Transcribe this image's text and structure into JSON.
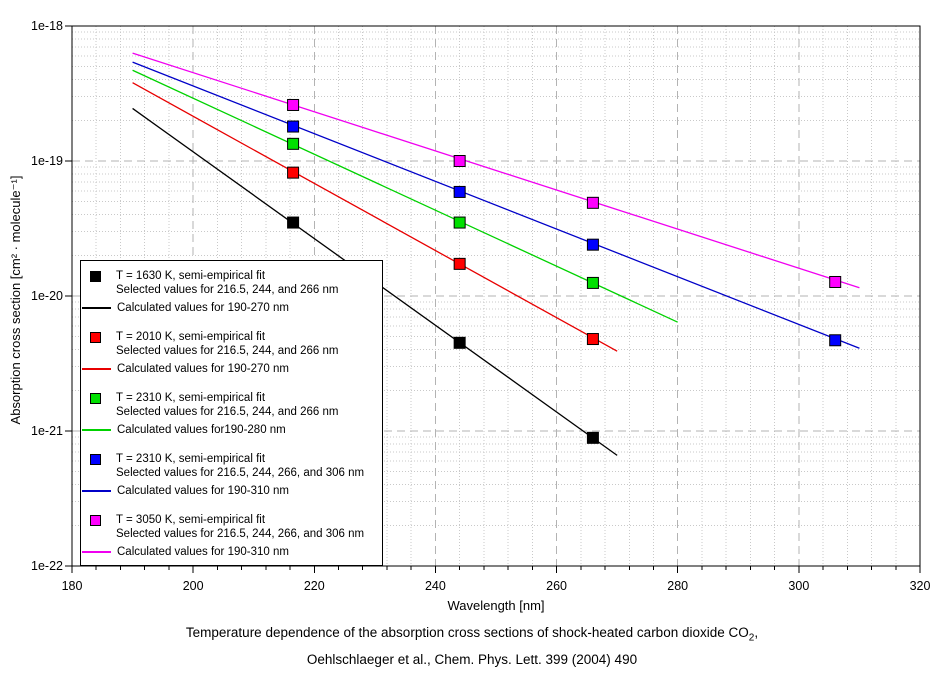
{
  "caption": {
    "line1_main": "Temperature dependence of the absorption cross sections of shock-heated carbon dioxide CO",
    "line1_sub": "2",
    "line1_tail": ",",
    "line2": "Oehlschlaeger et al., Chem. Phys. Lett. 399 (2004) 490"
  },
  "chart_data": {
    "type": "scatter",
    "title": "",
    "xlabel": "Wavelength [nm]",
    "ylabel": "Absorption cross section [cm² · molecule⁻¹]",
    "x_axis": {
      "min": 180,
      "max": 320,
      "major_ticks": [
        180,
        200,
        220,
        240,
        260,
        280,
        300,
        320
      ],
      "minor_step": 4
    },
    "y_axis": {
      "scale": "log",
      "min": 1e-22,
      "max": 1e-18,
      "major_tick_labels": [
        "1e-18",
        "1e-19",
        "1e-20",
        "1e-21",
        "1e-22"
      ],
      "major_tick_exponents": [
        -18,
        -19,
        -20,
        -21,
        -22
      ]
    },
    "grid": {
      "major_on": true,
      "minor_on": true,
      "major_color": "#b3b3b3",
      "minor_color": "#c9c9c9"
    },
    "legend_position": "lower-left",
    "series": [
      {
        "temperature_label": "T = 1630 K, semi-empirical fit",
        "points_label": "Selected values for 216.5, 244, and 266 nm",
        "line_label": "Calculated values for 190-270 nm",
        "marker_color": "#000000",
        "line_color": "#000000",
        "points": {
          "x": [
            216.5,
            244,
            266
          ],
          "y": [
            3.5e-20,
            4.5e-21,
            8.9e-22
          ]
        },
        "fit_line": {
          "x": [
            190,
            270
          ],
          "y": [
            2.45e-19,
            6.6e-22
          ]
        }
      },
      {
        "temperature_label": "T = 2010 K, semi-empirical fit",
        "points_label": "Selected values for 216.5, 244, and 266 nm",
        "line_label": "Calculated values for 190-270 nm",
        "marker_color": "#ff0000",
        "line_color": "#e80000",
        "points": {
          "x": [
            216.5,
            244,
            266
          ],
          "y": [
            8.2e-20,
            1.73e-20,
            4.8e-21
          ]
        },
        "fit_line": {
          "x": [
            190,
            270
          ],
          "y": [
            3.8e-19,
            3.9e-21
          ]
        }
      },
      {
        "temperature_label": "T = 2310 K, semi-empirical fit",
        "points_label": "Selected values for 216.5, 244, and 266 nm",
        "line_label": "Calculated values for190-280 nm",
        "marker_color": "#00e000",
        "line_color": "#00d200",
        "points": {
          "x": [
            216.5,
            244,
            266
          ],
          "y": [
            1.34e-19,
            3.5e-20,
            1.25e-20
          ]
        },
        "fit_line": {
          "x": [
            190,
            280
          ],
          "y": [
            4.7e-19,
            6.4e-21
          ]
        }
      },
      {
        "temperature_label": "T = 2310 K, semi-empirical fit",
        "points_label": "Selected values for 216.5, 244, 266, and 306 nm",
        "line_label": "Calculated values for 190-310 nm",
        "marker_color": "#0000ff",
        "line_color": "#0000c8",
        "points": {
          "x": [
            216.5,
            244,
            266,
            306
          ],
          "y": [
            1.8e-19,
            5.9e-20,
            2.4e-20,
            4.7e-21
          ]
        },
        "fit_line": {
          "x": [
            190,
            310
          ],
          "y": [
            5.4e-19,
            4.1e-21
          ]
        }
      },
      {
        "temperature_label": "T = 3050 K, semi-empirical fit",
        "points_label": "Selected values for 216.5, 244, 266, and 306 nm",
        "line_label": "Calculated values for 190-310 nm",
        "marker_color": "#ff00ff",
        "line_color": "#f000f0",
        "points": {
          "x": [
            216.5,
            244,
            266,
            306
          ],
          "y": [
            2.6e-19,
            1e-19,
            4.9e-20,
            1.27e-20
          ]
        },
        "fit_line": {
          "x": [
            190,
            310
          ],
          "y": [
            6.3e-19,
            1.15e-20
          ]
        }
      }
    ]
  }
}
